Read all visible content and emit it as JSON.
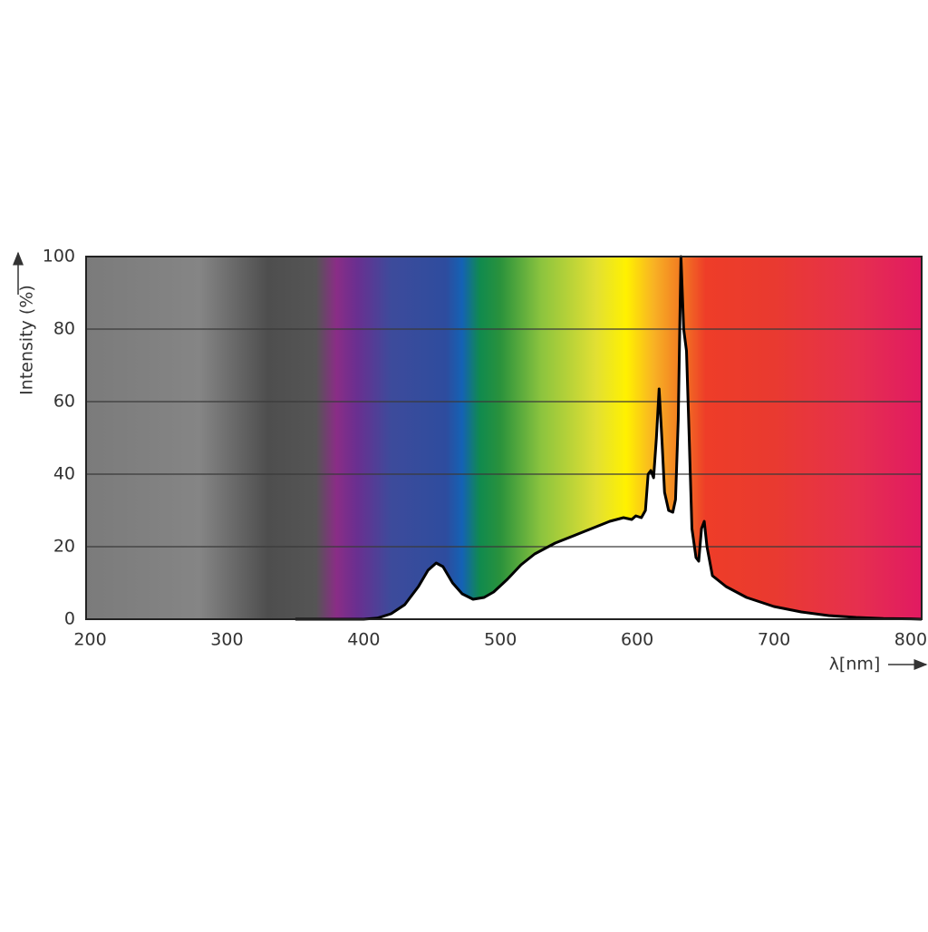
{
  "chart_data": {
    "type": "spectrum",
    "ylabel": "Intensity (%)",
    "xlabel": "λ[nm]",
    "x": [
      350,
      400,
      410,
      420,
      430,
      440,
      447,
      453,
      458,
      465,
      472,
      480,
      488,
      495,
      505,
      515,
      525,
      540,
      560,
      580,
      590,
      596,
      599,
      603,
      606,
      608,
      610,
      612,
      614,
      616,
      618,
      620,
      623,
      626,
      628,
      630,
      632,
      634,
      636,
      638,
      640,
      643,
      645,
      647,
      649,
      651,
      655,
      665,
      680,
      700,
      720,
      740,
      760,
      780,
      800,
      808
    ],
    "values": [
      0,
      0,
      0.3,
      1.5,
      4,
      9,
      13.5,
      15.5,
      14.5,
      10,
      7,
      5.5,
      6,
      7.5,
      11,
      15,
      18,
      21,
      24,
      27,
      28,
      27.5,
      28.5,
      28,
      30,
      40,
      41,
      39,
      50,
      63.5,
      50,
      35,
      30,
      29.5,
      33,
      55,
      100,
      80,
      74,
      50,
      25,
      17,
      16,
      25,
      27,
      20,
      12,
      9,
      6,
      3.5,
      2,
      1,
      0.5,
      0.2,
      0.1,
      0
    ],
    "line_color": "#000000",
    "fill_color": "#ffffff",
    "spectrum_colors": [
      {
        "at": 197,
        "color": "#7b7b7b"
      },
      {
        "at": 280,
        "color": "#858585"
      },
      {
        "at": 330,
        "color": "#4e4e4e"
      },
      {
        "at": 365,
        "color": "#555555"
      },
      {
        "at": 380,
        "color": "#8a2d86"
      },
      {
        "at": 395,
        "color": "#6a2f90"
      },
      {
        "at": 420,
        "color": "#3d4b9b"
      },
      {
        "at": 460,
        "color": "#2e4c9e"
      },
      {
        "at": 472,
        "color": "#1462b4"
      },
      {
        "at": 485,
        "color": "#108a4e"
      },
      {
        "at": 500,
        "color": "#2a923c"
      },
      {
        "at": 530,
        "color": "#8cc43e"
      },
      {
        "at": 570,
        "color": "#e2e033"
      },
      {
        "at": 592,
        "color": "#fff100"
      },
      {
        "at": 612,
        "color": "#f8b224"
      },
      {
        "at": 632,
        "color": "#f27a22"
      },
      {
        "at": 650,
        "color": "#ee3d28"
      },
      {
        "at": 700,
        "color": "#e93a30"
      },
      {
        "at": 760,
        "color": "#e6304e"
      },
      {
        "at": 808,
        "color": "#e11a62"
      }
    ],
    "xlim": [
      197,
      808
    ],
    "ylim": [
      0,
      100
    ],
    "xticks": [
      200,
      300,
      400,
      500,
      600,
      700,
      800
    ],
    "yticks": [
      0,
      20,
      40,
      60,
      80,
      100
    ],
    "grid": true
  }
}
